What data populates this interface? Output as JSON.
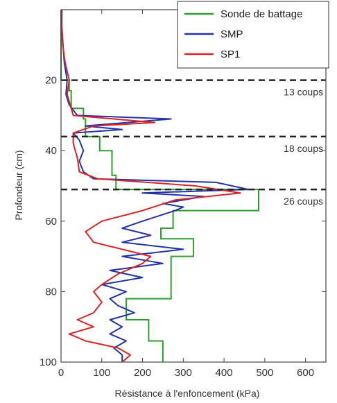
{
  "chart_data": {
    "type": "line",
    "xlabel": "Résistance à l'enfoncement (kPa)",
    "ylabel": "Profondeur (cm)",
    "xlim": [
      0,
      650
    ],
    "ylim": [
      0,
      100
    ],
    "y_inverted": true,
    "x_ticks": [
      0,
      100,
      200,
      300,
      400,
      500,
      600
    ],
    "y_ticks": [
      20,
      40,
      60,
      80,
      100
    ],
    "grid": false,
    "legend_position": "top-right",
    "series": [
      {
        "name": "Sonde de battage",
        "color": "#2ca02c",
        "step": true,
        "points": [
          [
            0,
            0
          ],
          [
            0,
            20
          ],
          [
            20,
            20
          ],
          [
            20,
            23
          ],
          [
            25,
            23
          ],
          [
            25,
            28
          ],
          [
            55,
            28
          ],
          [
            55,
            31
          ],
          [
            60,
            31
          ],
          [
            60,
            36
          ],
          [
            95,
            36
          ],
          [
            95,
            40
          ],
          [
            125,
            40
          ],
          [
            125,
            47
          ],
          [
            135,
            47
          ],
          [
            135,
            51
          ],
          [
            485,
            51
          ],
          [
            485,
            57
          ],
          [
            275,
            57
          ],
          [
            275,
            62
          ],
          [
            245,
            62
          ],
          [
            245,
            65
          ],
          [
            325,
            65
          ],
          [
            325,
            70
          ],
          [
            270,
            70
          ],
          [
            270,
            82
          ],
          [
            160,
            82
          ],
          [
            160,
            88
          ],
          [
            215,
            88
          ],
          [
            215,
            94
          ],
          [
            250,
            94
          ],
          [
            250,
            100
          ]
        ]
      },
      {
        "name": "SMP",
        "color": "#2233aa",
        "step": false,
        "points": [
          [
            2,
            0
          ],
          [
            2,
            5
          ],
          [
            5,
            10
          ],
          [
            8,
            15
          ],
          [
            15,
            20
          ],
          [
            12,
            24
          ],
          [
            20,
            27
          ],
          [
            40,
            30
          ],
          [
            270,
            31
          ],
          [
            60,
            33
          ],
          [
            150,
            34
          ],
          [
            30,
            35
          ],
          [
            45,
            37
          ],
          [
            55,
            40
          ],
          [
            45,
            43
          ],
          [
            55,
            46
          ],
          [
            80,
            48
          ],
          [
            380,
            49
          ],
          [
            460,
            51
          ],
          [
            200,
            52
          ],
          [
            350,
            53
          ],
          [
            250,
            55
          ],
          [
            300,
            56
          ],
          [
            280,
            57
          ],
          [
            200,
            60
          ],
          [
            150,
            62
          ],
          [
            220,
            64
          ],
          [
            150,
            66
          ],
          [
            300,
            68
          ],
          [
            150,
            70
          ],
          [
            250,
            72
          ],
          [
            120,
            74
          ],
          [
            200,
            76
          ],
          [
            100,
            78
          ],
          [
            160,
            80
          ],
          [
            120,
            82
          ],
          [
            140,
            84
          ],
          [
            180,
            86
          ],
          [
            120,
            88
          ],
          [
            150,
            90
          ],
          [
            120,
            92
          ],
          [
            160,
            94
          ],
          [
            130,
            96
          ],
          [
            150,
            98
          ],
          [
            150,
            100
          ]
        ]
      },
      {
        "name": "SP1",
        "color": "#dd2222",
        "step": false,
        "points": [
          [
            0,
            0
          ],
          [
            2,
            5
          ],
          [
            4,
            10
          ],
          [
            10,
            15
          ],
          [
            20,
            20
          ],
          [
            15,
            24
          ],
          [
            25,
            28
          ],
          [
            30,
            30
          ],
          [
            230,
            32
          ],
          [
            80,
            33
          ],
          [
            30,
            35
          ],
          [
            30,
            38
          ],
          [
            40,
            42
          ],
          [
            45,
            46
          ],
          [
            90,
            48
          ],
          [
            330,
            50
          ],
          [
            440,
            52
          ],
          [
            280,
            54
          ],
          [
            200,
            57
          ],
          [
            100,
            60
          ],
          [
            60,
            63
          ],
          [
            80,
            66
          ],
          [
            150,
            68
          ],
          [
            220,
            70
          ],
          [
            200,
            72
          ],
          [
            140,
            75
          ],
          [
            100,
            78
          ],
          [
            80,
            80
          ],
          [
            100,
            83
          ],
          [
            80,
            86
          ],
          [
            40,
            88
          ],
          [
            80,
            90
          ],
          [
            20,
            92
          ],
          [
            60,
            94
          ],
          [
            140,
            96
          ],
          [
            170,
            98
          ],
          [
            150,
            100
          ]
        ]
      }
    ],
    "annotations": [
      {
        "text": "13 coups",
        "depth": 20
      },
      {
        "text": "18 coups",
        "depth": 36
      },
      {
        "text": "26 coups",
        "depth": 51
      }
    ],
    "dashed_lines_at_depth": [
      20,
      36,
      51
    ]
  }
}
